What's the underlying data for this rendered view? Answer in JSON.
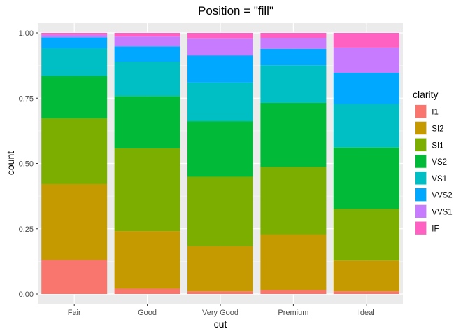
{
  "chart_data": {
    "type": "bar",
    "stacked": "fill",
    "title": "Position = \"fill\"",
    "xlabel": "cut",
    "ylabel": "count",
    "ylim": [
      0,
      1
    ],
    "yticks": [
      "0.00",
      "0.25",
      "0.50",
      "0.75",
      "1.00"
    ],
    "categories": [
      "Fair",
      "Good",
      "Very Good",
      "Premium",
      "Ideal"
    ],
    "legend": {
      "title": "clarity",
      "position": "right"
    },
    "grid": true,
    "series": [
      {
        "name": "I1",
        "color": "#F8766D",
        "values": [
          0.13,
          0.02,
          0.01,
          0.015,
          0.01
        ]
      },
      {
        "name": "SI2",
        "color": "#C49A00",
        "values": [
          0.291,
          0.221,
          0.173,
          0.213,
          0.118
        ]
      },
      {
        "name": "SI1",
        "color": "#7CAE00",
        "values": [
          0.252,
          0.317,
          0.266,
          0.259,
          0.198
        ]
      },
      {
        "name": "VS2",
        "color": "#00BA38",
        "values": [
          0.162,
          0.2,
          0.213,
          0.245,
          0.235
        ]
      },
      {
        "name": "VS1",
        "color": "#00BFC4",
        "values": [
          0.106,
          0.132,
          0.148,
          0.144,
          0.167
        ]
      },
      {
        "name": "VVS2",
        "color": "#00A9FF",
        "values": [
          0.042,
          0.058,
          0.104,
          0.063,
          0.119
        ]
      },
      {
        "name": "VVS1",
        "color": "#C77CFF",
        "values": [
          0.01,
          0.038,
          0.064,
          0.041,
          0.097
        ]
      },
      {
        "name": "IF",
        "color": "#FF61C3",
        "values": [
          0.007,
          0.014,
          0.022,
          0.02,
          0.056
        ]
      }
    ]
  }
}
